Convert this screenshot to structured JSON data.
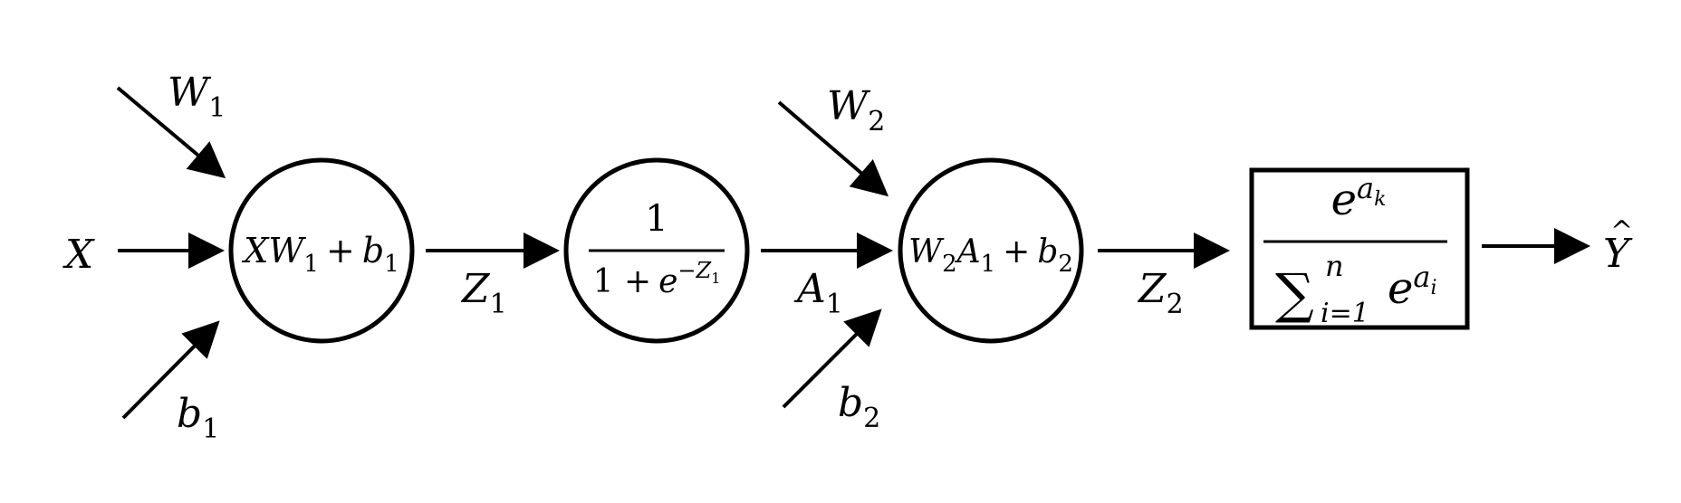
{
  "inputs": {
    "x": "X",
    "w1": {
      "base": "W",
      "sub": "1"
    },
    "b1": {
      "base": "b",
      "sub": "1"
    },
    "w2": {
      "base": "W",
      "sub": "2"
    },
    "b2": {
      "base": "b",
      "sub": "2"
    }
  },
  "nodes": {
    "linear1": {
      "x": "X",
      "w": "W",
      "w_sub": "1",
      "plus": "+",
      "b": "b",
      "b_sub": "1"
    },
    "sigmoid": {
      "numerator": "1",
      "denominator_prefix": "1 +",
      "e": "e",
      "exp_minus": "−",
      "exp_z": "Z",
      "exp_z_sub": "1"
    },
    "linear2": {
      "w": "W",
      "w_sub": "2",
      "a": "A",
      "a_sub": "1",
      "plus": "+",
      "b": "b",
      "b_sub": "2"
    },
    "softmax": {
      "num_e": "e",
      "num_a": "a",
      "num_k": "k",
      "sum": "∑",
      "sum_top": "n",
      "sum_bottom": "i=1",
      "den_e": "e",
      "den_a": "a",
      "den_i": "i"
    }
  },
  "edges": {
    "z1": {
      "base": "Z",
      "sub": "1"
    },
    "a1": {
      "base": "A",
      "sub": "1"
    },
    "z2": {
      "base": "Z",
      "sub": "2"
    }
  },
  "output": {
    "label": "Y",
    "hat": "^"
  }
}
